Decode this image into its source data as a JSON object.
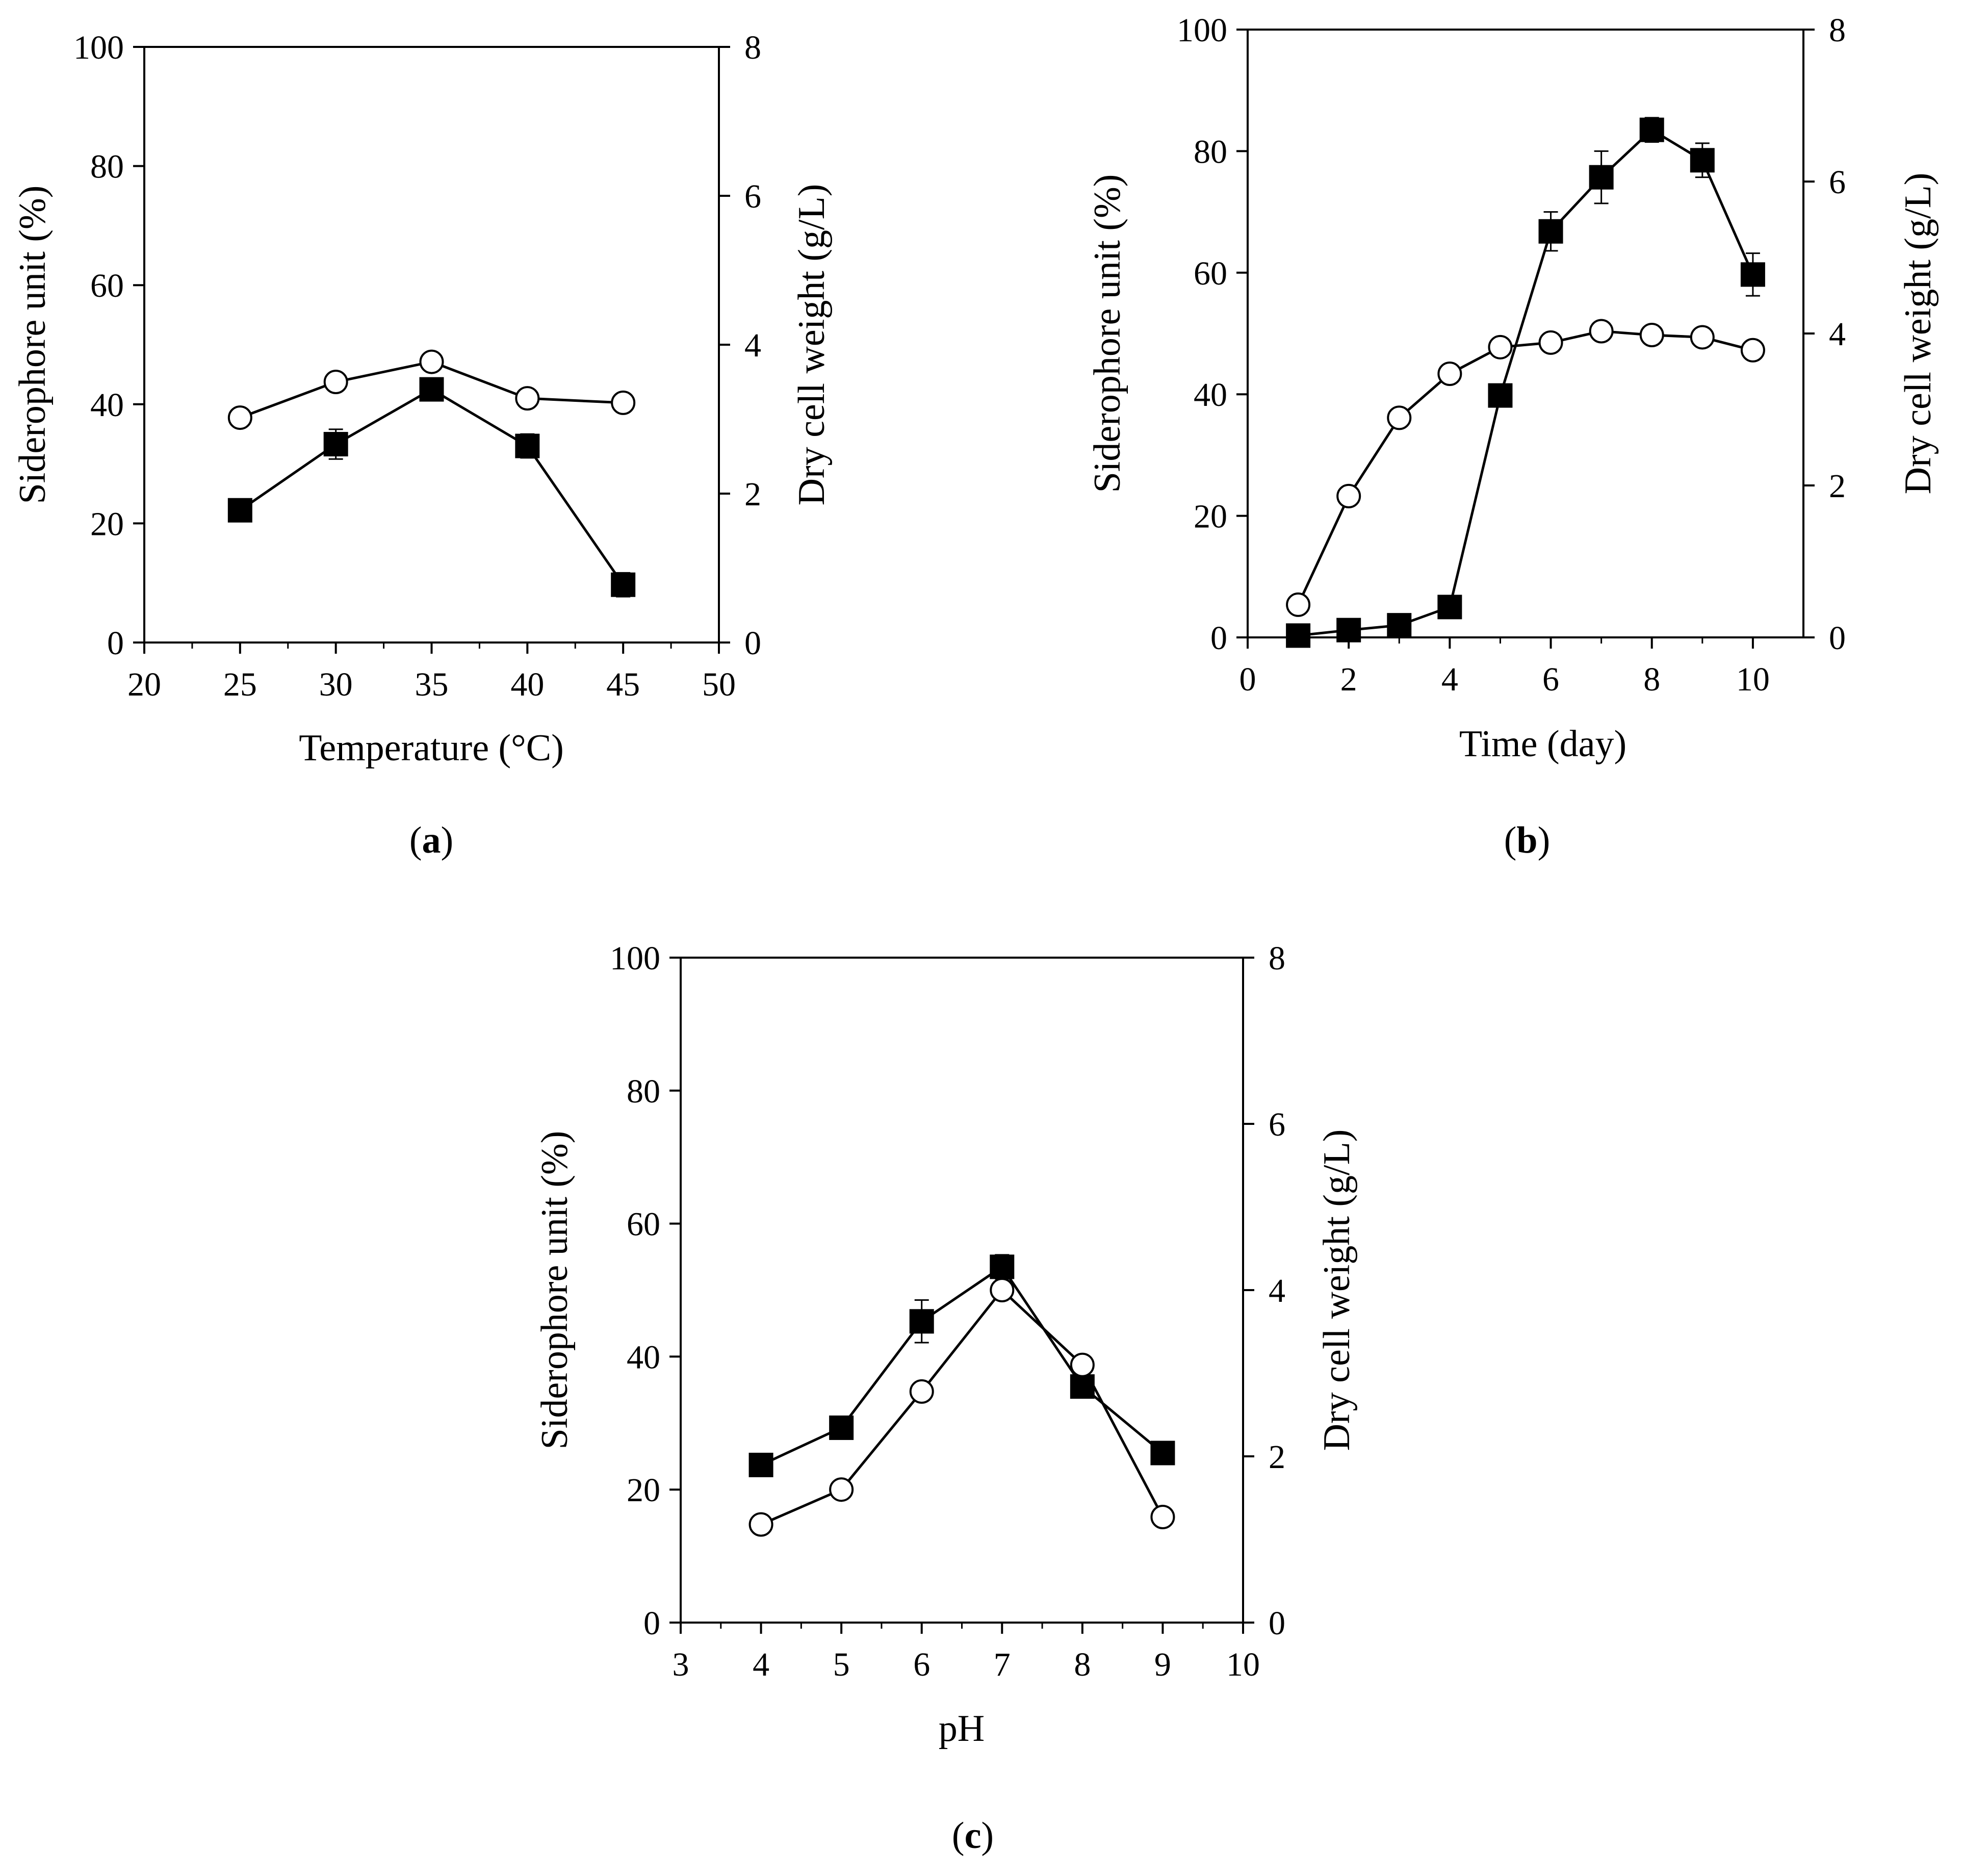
{
  "chart_data": [
    {
      "id": "a",
      "type": "line",
      "panel_label": "a",
      "xlabel": "Temperature (°C)",
      "ylabel": "Siderophore unit (%)",
      "y2label": "Dry cell weight (g/L)",
      "xlim": [
        20,
        50
      ],
      "ylim": [
        0,
        100
      ],
      "y2lim": [
        0,
        8
      ],
      "xticks": [
        20,
        25,
        30,
        35,
        40,
        45,
        50
      ],
      "yticks": [
        0,
        20,
        40,
        60,
        80,
        100
      ],
      "y2ticks": [
        0,
        2,
        4,
        6,
        8
      ],
      "series": [
        {
          "name": "Siderophore unit",
          "marker": "filled-square",
          "axis": "left",
          "x": [
            25,
            30,
            35,
            40,
            45
          ],
          "values": [
            22.2,
            33.3,
            42.5,
            33.0,
            9.7
          ],
          "errors": [
            0.8,
            2.5,
            1.5,
            2.0,
            2.0
          ]
        },
        {
          "name": "Dry cell weight",
          "marker": "open-circle",
          "axis": "right",
          "x": [
            25,
            30,
            35,
            40,
            45
          ],
          "values": [
            3.02,
            3.5,
            3.77,
            3.28,
            3.22
          ]
        }
      ]
    },
    {
      "id": "b",
      "type": "line",
      "panel_label": "b",
      "xlabel": "Time (day)",
      "ylabel": "Siderophore unit (%)",
      "y2label": "Dry cell weight (g/L)",
      "xlim": [
        0,
        11
      ],
      "ylim": [
        0,
        100
      ],
      "y2lim": [
        0,
        8
      ],
      "xticks": [
        0,
        2,
        4,
        6,
        8,
        10
      ],
      "yticks": [
        0,
        20,
        40,
        60,
        80,
        100
      ],
      "y2ticks": [
        0,
        2,
        4,
        6,
        8
      ],
      "series": [
        {
          "name": "Siderophore unit",
          "marker": "filled-square",
          "axis": "left",
          "x": [
            1,
            2,
            3,
            4,
            5,
            6,
            7,
            8,
            9,
            10
          ],
          "values": [
            0.3,
            1.2,
            2.0,
            5.0,
            39.8,
            66.8,
            75.7,
            83.5,
            78.5,
            59.7
          ],
          "errors": [
            0.3,
            0.4,
            0.5,
            0.7,
            1.2,
            3.2,
            4.3,
            2.0,
            2.8,
            3.5
          ]
        },
        {
          "name": "Dry cell weight",
          "marker": "open-circle",
          "axis": "right",
          "x": [
            1,
            2,
            3,
            4,
            5,
            6,
            7,
            8,
            9,
            10
          ],
          "values": [
            0.43,
            1.86,
            2.89,
            3.47,
            3.82,
            3.88,
            4.03,
            3.98,
            3.95,
            3.78
          ]
        }
      ]
    },
    {
      "id": "c",
      "type": "line",
      "panel_label": "c",
      "xlabel": "pH",
      "ylabel": "Siderophore unit (%)",
      "y2label": "Dry cell weight (g/L)",
      "xlim": [
        3,
        10
      ],
      "ylim": [
        0,
        100
      ],
      "y2lim": [
        0,
        8
      ],
      "xticks": [
        3,
        4,
        5,
        6,
        7,
        8,
        9,
        10
      ],
      "yticks": [
        0,
        20,
        40,
        60,
        80,
        100
      ],
      "y2ticks": [
        0,
        2,
        4,
        6,
        8
      ],
      "series": [
        {
          "name": "Siderophore unit",
          "marker": "filled-square",
          "axis": "left",
          "x": [
            4,
            5,
            6,
            7,
            8,
            9
          ],
          "values": [
            23.7,
            29.3,
            45.3,
            53.5,
            35.5,
            25.5
          ],
          "errors": [
            0.6,
            0.6,
            3.2,
            1.8,
            1.2,
            0.6
          ]
        },
        {
          "name": "Dry cell weight",
          "marker": "open-circle",
          "axis": "right",
          "x": [
            4,
            5,
            6,
            7,
            8,
            9
          ],
          "values": [
            1.18,
            1.6,
            2.78,
            4.0,
            3.1,
            1.27
          ]
        }
      ]
    }
  ]
}
